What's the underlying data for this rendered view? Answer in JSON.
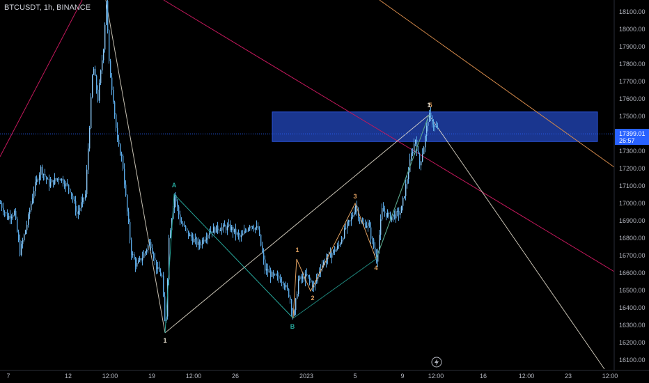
{
  "header": {
    "ticker_label": "BTCUSDT, 1h, BINANCE"
  },
  "price_tag": {
    "price": "17399.01",
    "countdown": "26:57",
    "value": 17399.01
  },
  "colors": {
    "background": "#000000",
    "candle": "#5aa9e6",
    "zone_fill": "#1e3fa8",
    "wave_white": "#e8e0d0",
    "wave_orange": "#e0a060",
    "wave_teal": "#26a69a",
    "trend_red": "#c2185b",
    "trend_orange": "#d4894a",
    "price_tag_bg": "#2962ff",
    "axis_text": "#b2b5be"
  },
  "chart_data": {
    "type": "candlestick",
    "symbol": "BTCUSDT",
    "interval": "1h",
    "exchange": "BINANCE",
    "y_axis": {
      "ticks": [
        16100,
        16200,
        16300,
        16400,
        16500,
        16600,
        16700,
        16800,
        16900,
        17000,
        17100,
        17200,
        17300,
        17400,
        17500,
        17600,
        17700,
        17800,
        17900,
        18000,
        18100
      ],
      "tick_labels": [
        "16100.00",
        "16200.00",
        "16300.00",
        "16400.00",
        "16500.00",
        "16600.00",
        "16700.00",
        "16800.00",
        "16900.00",
        "17000.00",
        "17100.00",
        "17200.00",
        "17300.00",
        "17400.00",
        "17500.00",
        "17600.00",
        "17700.00",
        "17800.00",
        "17900.00",
        "18000.00",
        "18100.00"
      ],
      "range": [
        16030,
        18170
      ]
    },
    "x_axis": {
      "tick_labels": [
        "7",
        "12",
        "12:00",
        "19",
        "12:00",
        "26",
        "2023",
        "5",
        "9",
        "12:00",
        "16",
        "12:00",
        "23",
        "12:00"
      ]
    },
    "price_path": [
      [
        0,
        17000
      ],
      [
        10,
        16920
      ],
      [
        20,
        16950
      ],
      [
        28,
        16720
      ],
      [
        38,
        16880
      ],
      [
        48,
        17080
      ],
      [
        58,
        17200
      ],
      [
        70,
        17110
      ],
      [
        85,
        17150
      ],
      [
        100,
        17080
      ],
      [
        110,
        16940
      ],
      [
        122,
        17050
      ],
      [
        128,
        17450
      ],
      [
        133,
        17800
      ],
      [
        140,
        17600
      ],
      [
        148,
        17900
      ],
      [
        152,
        18170
      ],
      [
        156,
        17800
      ],
      [
        162,
        17600
      ],
      [
        168,
        17350
      ],
      [
        175,
        17250
      ],
      [
        182,
        16950
      ],
      [
        188,
        16720
      ],
      [
        195,
        16640
      ],
      [
        205,
        16700
      ],
      [
        215,
        16780
      ],
      [
        225,
        16620
      ],
      [
        232,
        16580
      ],
      [
        237,
        16250
      ],
      [
        242,
        16800
      ],
      [
        250,
        17050
      ],
      [
        258,
        16900
      ],
      [
        270,
        16820
      ],
      [
        285,
        16760
      ],
      [
        300,
        16840
      ],
      [
        315,
        16860
      ],
      [
        330,
        16860
      ],
      [
        345,
        16800
      ],
      [
        358,
        16880
      ],
      [
        370,
        16850
      ],
      [
        380,
        16620
      ],
      [
        392,
        16580
      ],
      [
        405,
        16560
      ],
      [
        415,
        16470
      ],
      [
        421,
        16340
      ],
      [
        428,
        16560
      ],
      [
        440,
        16580
      ],
      [
        450,
        16520
      ],
      [
        460,
        16640
      ],
      [
        472,
        16700
      ],
      [
        485,
        16750
      ],
      [
        497,
        16870
      ],
      [
        503,
        16900
      ],
      [
        510,
        16990
      ],
      [
        518,
        16880
      ],
      [
        528,
        16880
      ],
      [
        540,
        16680
      ],
      [
        548,
        16960
      ],
      [
        560,
        16920
      ],
      [
        575,
        16950
      ],
      [
        582,
        17100
      ],
      [
        590,
        17280
      ],
      [
        596,
        17370
      ],
      [
        602,
        17220
      ],
      [
        608,
        17330
      ],
      [
        615,
        17510
      ],
      [
        622,
        17450
      ],
      [
        628,
        17420
      ]
    ],
    "zone": {
      "y_low": 17355,
      "y_high": 17525
    },
    "wave_points": {
      "labels": [
        "A",
        "B",
        "1",
        "2",
        "3",
        "4",
        "5",
        "1",
        "1"
      ],
      "values": [
        17060,
        16340,
        16680,
        16490,
        16990,
        16680,
        17510,
        16250,
        18170
      ]
    }
  },
  "wave_labels": [
    {
      "text": "1",
      "color": "#e8e0d0"
    },
    {
      "text": "A",
      "color": "#26a69a"
    },
    {
      "text": "B",
      "color": "#26a69a"
    },
    {
      "text": "1",
      "color": "#e0a060"
    },
    {
      "text": "2",
      "color": "#e0a060"
    },
    {
      "text": "3",
      "color": "#e0a060"
    },
    {
      "text": "4",
      "color": "#e0a060"
    },
    {
      "text": "5",
      "color": "#e0a060"
    },
    {
      "text": "1",
      "color": "#e8e0d0"
    }
  ]
}
